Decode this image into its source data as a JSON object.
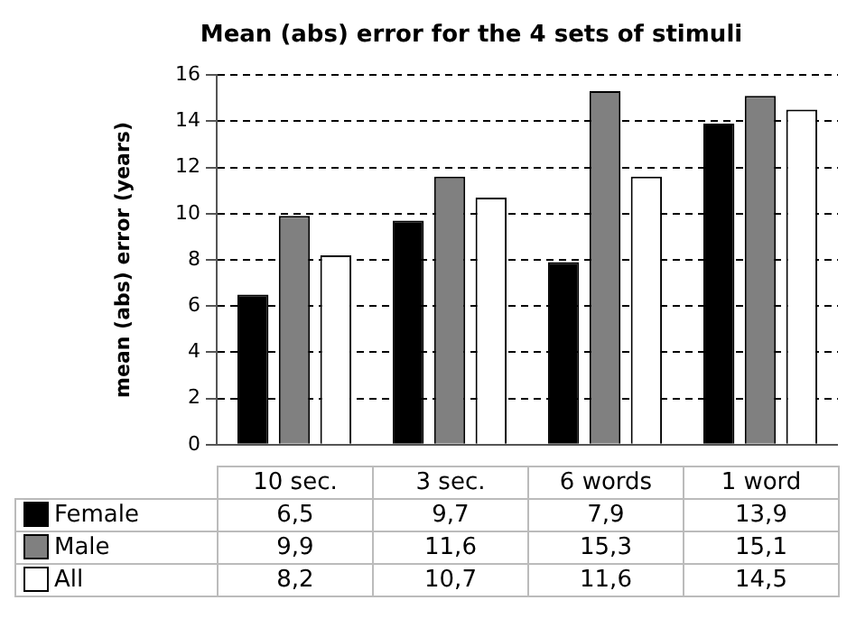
{
  "chart_data": {
    "type": "bar",
    "title": "Mean (abs) error for the 4 sets of stimuli",
    "ylabel": "mean (abs) error (years)",
    "categories": [
      "10 sec.",
      "3 sec.",
      "6 words",
      "1 word"
    ],
    "series": [
      {
        "name": "Female",
        "color": "#000000",
        "values": [
          6.5,
          9.7,
          7.9,
          13.9
        ],
        "value_labels": [
          "6,5",
          "9,7",
          "7,9",
          "13,9"
        ]
      },
      {
        "name": "Male",
        "color": "#808080",
        "values": [
          9.9,
          11.6,
          15.3,
          15.1
        ],
        "value_labels": [
          "9,9",
          "11,6",
          "15,3",
          "15,1"
        ]
      },
      {
        "name": "All",
        "color": "#ffffff",
        "values": [
          8.2,
          10.7,
          11.6,
          14.5
        ],
        "value_labels": [
          "8,2",
          "10,7",
          "11,6",
          "14,5"
        ]
      }
    ],
    "ylim": [
      0,
      16
    ],
    "yticks": [
      0,
      2,
      4,
      6,
      8,
      10,
      12,
      14,
      16
    ],
    "grid": "y",
    "legend": "bottom"
  }
}
